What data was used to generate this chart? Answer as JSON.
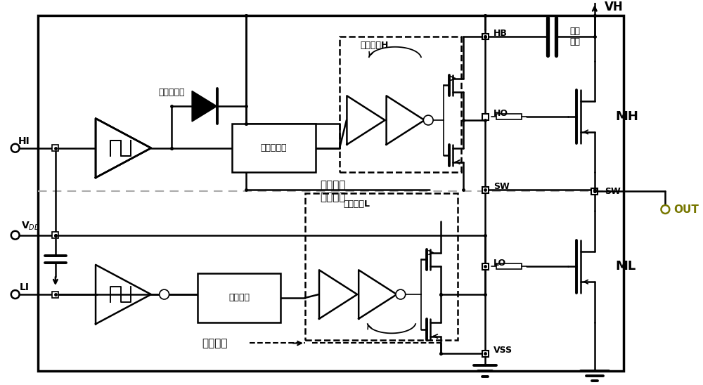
{
  "bg_color": "#ffffff",
  "lc": "#000000",
  "fig_w": 10.0,
  "fig_h": 5.48,
  "dpi": 100,
  "font": "Arial Unicode MS",
  "lw_thin": 1.2,
  "lw_med": 1.8,
  "lw_thick": 2.5,
  "texts": {
    "HI": "HI",
    "VDD": "V$_{DD}$",
    "LI": "LI",
    "HB": "HB",
    "HO": "HO",
    "SW": "SW",
    "OUT": "OUT",
    "LO": "LO",
    "VSS": "VSS",
    "VH": "VH",
    "MH": "MH",
    "ML": "ML",
    "bootstrap_diode": "自举二极管",
    "level_shifter": "电平转换器",
    "output_drive_h": "输出驱动H",
    "output_drive_l": "输出驱动L",
    "high_side": "高侧驱动",
    "low_side": "低侧驱动",
    "bootstrap_cap": "自举\n电容",
    "half_bridge": "半桥驱动",
    "delay_match": "延时匹配"
  }
}
